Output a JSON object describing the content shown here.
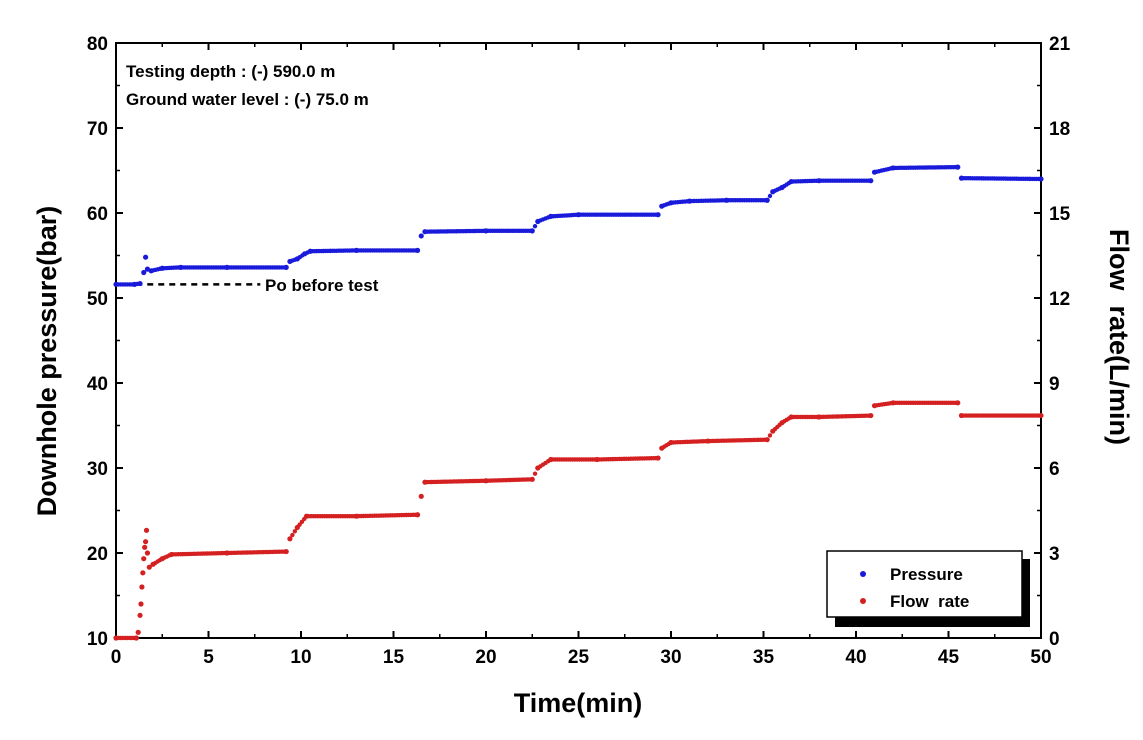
{
  "chart_data": {
    "type": "scatter",
    "title": "",
    "xlabel": "Time(min)",
    "ylabel_left": "Downhole pressure(bar)",
    "ylabel_right": "Flow  rate(L/min)",
    "xlim": [
      0,
      50
    ],
    "ylim_left": [
      10,
      80
    ],
    "ylim_right": [
      0,
      21
    ],
    "x_ticks": [
      "0",
      "5",
      "10",
      "15",
      "20",
      "25",
      "30",
      "35",
      "40",
      "45",
      "50"
    ],
    "y_left_ticks": [
      "10",
      "20",
      "30",
      "40",
      "50",
      "60",
      "70",
      "80"
    ],
    "y_right_ticks": [
      "0",
      "3",
      "6",
      "9",
      "12",
      "15",
      "18",
      "21"
    ],
    "grid": false,
    "legend_position": "bottom-right",
    "annotations": {
      "depth": "Testing depth : (-) 590.0 m",
      "water_level": "Ground water level : (-) 75.0 m",
      "po_label": "Po before test",
      "po_value": 51.6,
      "po_x_range": [
        0.5,
        7.8
      ]
    },
    "series": [
      {
        "name": "Pressure",
        "axis": "left",
        "color": "#1a1adb",
        "points": [
          [
            0,
            51.6
          ],
          [
            1.0,
            51.6
          ],
          [
            1.3,
            51.7
          ],
          [
            1.5,
            53.0
          ],
          [
            1.6,
            54.8
          ],
          [
            1.7,
            53.4
          ],
          [
            1.9,
            53.2
          ],
          [
            2.5,
            53.5
          ],
          [
            3.5,
            53.6
          ],
          [
            6.0,
            53.6
          ],
          [
            9.2,
            53.6
          ],
          [
            9.4,
            54.3
          ],
          [
            9.8,
            54.6
          ],
          [
            10.2,
            55.2
          ],
          [
            10.5,
            55.5
          ],
          [
            13.0,
            55.6
          ],
          [
            16.3,
            55.6
          ],
          [
            16.5,
            57.3
          ],
          [
            16.7,
            57.8
          ],
          [
            20.0,
            57.9
          ],
          [
            22.5,
            57.9
          ],
          [
            22.8,
            59.0
          ],
          [
            23.5,
            59.6
          ],
          [
            25.0,
            59.8
          ],
          [
            29.3,
            59.8
          ],
          [
            29.5,
            60.8
          ],
          [
            30.0,
            61.2
          ],
          [
            31.0,
            61.4
          ],
          [
            33.0,
            61.5
          ],
          [
            35.2,
            61.5
          ],
          [
            35.5,
            62.5
          ],
          [
            36.0,
            63.0
          ],
          [
            36.5,
            63.7
          ],
          [
            38.0,
            63.8
          ],
          [
            40.8,
            63.8
          ],
          [
            41.0,
            64.8
          ],
          [
            42.0,
            65.3
          ],
          [
            45.5,
            65.4
          ],
          [
            45.7,
            64.1
          ],
          [
            50.0,
            64.0
          ]
        ]
      },
      {
        "name": "Flow  rate",
        "axis": "right",
        "color": "#d42020",
        "points": [
          [
            0,
            0.0
          ],
          [
            1.1,
            0.0
          ],
          [
            1.2,
            0.2
          ],
          [
            1.3,
            0.8
          ],
          [
            1.35,
            1.2
          ],
          [
            1.4,
            1.8
          ],
          [
            1.45,
            2.3
          ],
          [
            1.5,
            2.8
          ],
          [
            1.55,
            3.2
          ],
          [
            1.6,
            3.4
          ],
          [
            1.65,
            3.8
          ],
          [
            1.7,
            3.0
          ],
          [
            1.8,
            2.5
          ],
          [
            2.0,
            2.6
          ],
          [
            2.5,
            2.8
          ],
          [
            3.0,
            2.95
          ],
          [
            6.0,
            3.0
          ],
          [
            9.2,
            3.05
          ],
          [
            9.4,
            3.5
          ],
          [
            9.8,
            3.9
          ],
          [
            10.3,
            4.3
          ],
          [
            13.0,
            4.3
          ],
          [
            16.3,
            4.35
          ],
          [
            16.5,
            5.0
          ],
          [
            16.7,
            5.5
          ],
          [
            20.0,
            5.55
          ],
          [
            22.5,
            5.6
          ],
          [
            22.8,
            6.0
          ],
          [
            23.5,
            6.3
          ],
          [
            26.0,
            6.3
          ],
          [
            29.3,
            6.35
          ],
          [
            29.5,
            6.7
          ],
          [
            30.0,
            6.9
          ],
          [
            32.0,
            6.95
          ],
          [
            35.2,
            7.0
          ],
          [
            35.5,
            7.3
          ],
          [
            36.0,
            7.6
          ],
          [
            36.5,
            7.8
          ],
          [
            38.0,
            7.8
          ],
          [
            40.8,
            7.85
          ],
          [
            41.0,
            8.2
          ],
          [
            42.0,
            8.3
          ],
          [
            45.5,
            8.3
          ],
          [
            45.7,
            7.85
          ],
          [
            50.0,
            7.85
          ]
        ]
      }
    ]
  }
}
